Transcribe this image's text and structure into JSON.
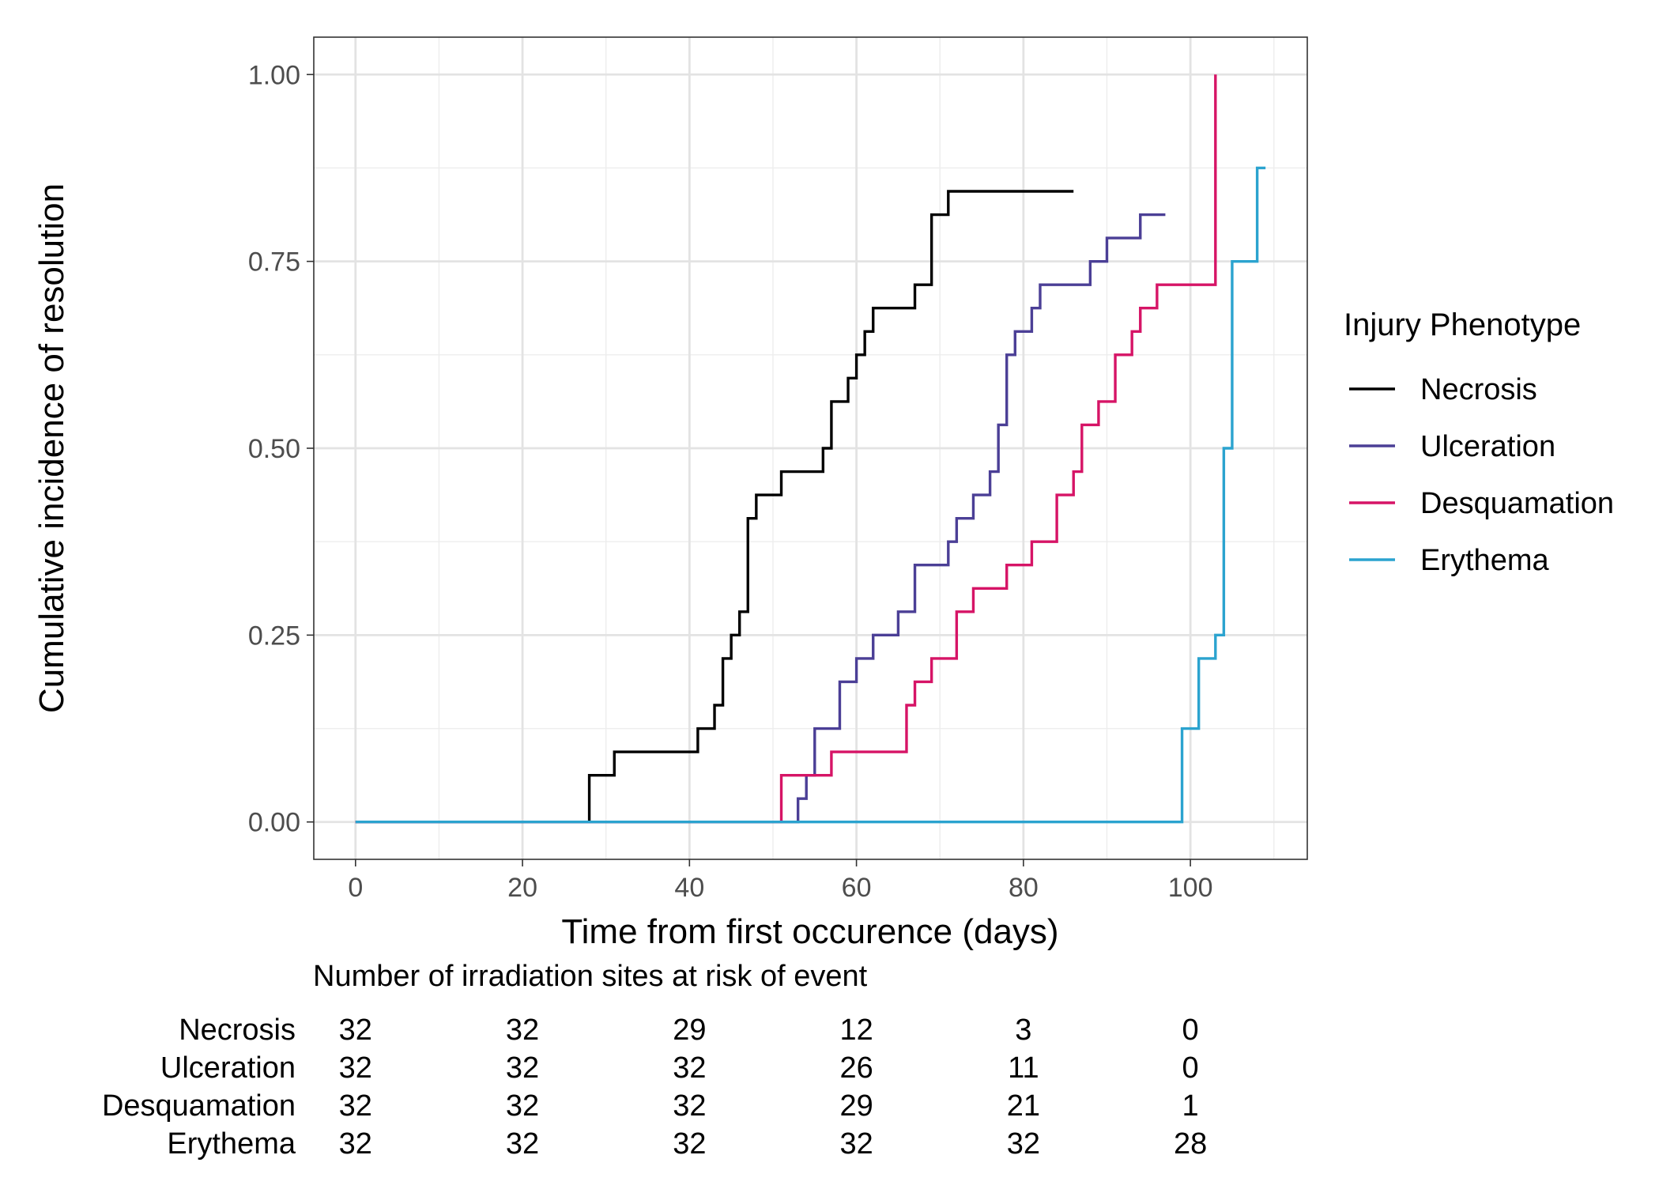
{
  "chart_data": {
    "type": "line",
    "step": true,
    "title": "",
    "xlabel": "Time from first occurence (days)",
    "ylabel": "Cumulative incidence of resolution",
    "xlim": [
      -5,
      114
    ],
    "ylim": [
      -0.05,
      1.05
    ],
    "x_ticks": [
      0,
      20,
      40,
      60,
      80,
      100
    ],
    "x_minor_ticks": [
      10,
      30,
      50,
      70,
      90,
      110
    ],
    "y_ticks": [
      0,
      0.25,
      0.5,
      0.75,
      1.0
    ],
    "y_tick_labels": [
      "0.00",
      "0.25",
      "0.50",
      "0.75",
      "1.00"
    ],
    "y_minor_ticks": [
      0.125,
      0.375,
      0.625,
      0.875
    ],
    "grid": true,
    "legend": {
      "title": "Injury Phenotype",
      "position": "right"
    },
    "series": [
      {
        "name": "Necrosis",
        "color": "#000000",
        "points": [
          [
            0,
            0
          ],
          [
            28,
            0.0625
          ],
          [
            31,
            0.09375
          ],
          [
            41,
            0.125
          ],
          [
            43,
            0.15625
          ],
          [
            44,
            0.21875
          ],
          [
            45,
            0.25
          ],
          [
            46,
            0.28125
          ],
          [
            47,
            0.40625
          ],
          [
            48,
            0.4375
          ],
          [
            51,
            0.46875
          ],
          [
            56,
            0.5
          ],
          [
            57,
            0.5625
          ],
          [
            59,
            0.59375
          ],
          [
            60,
            0.625
          ],
          [
            61,
            0.65625
          ],
          [
            62,
            0.6875
          ],
          [
            67,
            0.71875
          ],
          [
            69,
            0.8125
          ],
          [
            71,
            0.84375
          ],
          [
            86,
            0.84375
          ]
        ]
      },
      {
        "name": "Ulceration",
        "color": "#4B3F96",
        "points": [
          [
            0,
            0
          ],
          [
            53,
            0.03125
          ],
          [
            54,
            0.0625
          ],
          [
            55,
            0.125
          ],
          [
            58,
            0.1875
          ],
          [
            60,
            0.21875
          ],
          [
            62,
            0.25
          ],
          [
            65,
            0.28125
          ],
          [
            67,
            0.34375
          ],
          [
            71,
            0.375
          ],
          [
            72,
            0.40625
          ],
          [
            74,
            0.4375
          ],
          [
            76,
            0.46875
          ],
          [
            77,
            0.53125
          ],
          [
            78,
            0.625
          ],
          [
            79,
            0.65625
          ],
          [
            81,
            0.6875
          ],
          [
            82,
            0.71875
          ],
          [
            88,
            0.75
          ],
          [
            90,
            0.78125
          ],
          [
            94,
            0.8125
          ],
          [
            97,
            0.8125
          ]
        ]
      },
      {
        "name": "Desquamation",
        "color": "#D61466",
        "points": [
          [
            0,
            0
          ],
          [
            51,
            0.0625
          ],
          [
            57,
            0.09375
          ],
          [
            66,
            0.15625
          ],
          [
            67,
            0.1875
          ],
          [
            69,
            0.21875
          ],
          [
            72,
            0.28125
          ],
          [
            74,
            0.3125
          ],
          [
            78,
            0.34375
          ],
          [
            81,
            0.375
          ],
          [
            84,
            0.4375
          ],
          [
            86,
            0.46875
          ],
          [
            87,
            0.53125
          ],
          [
            89,
            0.5625
          ],
          [
            91,
            0.625
          ],
          [
            93,
            0.65625
          ],
          [
            94,
            0.6875
          ],
          [
            96,
            0.71875
          ],
          [
            103,
            1.0
          ]
        ]
      },
      {
        "name": "Erythema",
        "color": "#2BA3CF",
        "points": [
          [
            0,
            0
          ],
          [
            99,
            0.125
          ],
          [
            101,
            0.21875
          ],
          [
            103,
            0.25
          ],
          [
            104,
            0.5
          ],
          [
            105,
            0.75
          ],
          [
            108,
            0.875
          ],
          [
            109,
            0.875
          ]
        ]
      }
    ],
    "risk_table": {
      "title": "Number of irradiation sites at risk of event",
      "times": [
        0,
        20,
        40,
        60,
        80,
        100
      ],
      "rows": [
        {
          "name": "Necrosis",
          "values": [
            32,
            32,
            29,
            12,
            3,
            0
          ]
        },
        {
          "name": "Ulceration",
          "values": [
            32,
            32,
            32,
            26,
            11,
            0
          ]
        },
        {
          "name": "Desquamation",
          "values": [
            32,
            32,
            32,
            29,
            21,
            1
          ]
        },
        {
          "name": "Erythema",
          "values": [
            32,
            32,
            32,
            32,
            32,
            28
          ]
        }
      ]
    }
  }
}
